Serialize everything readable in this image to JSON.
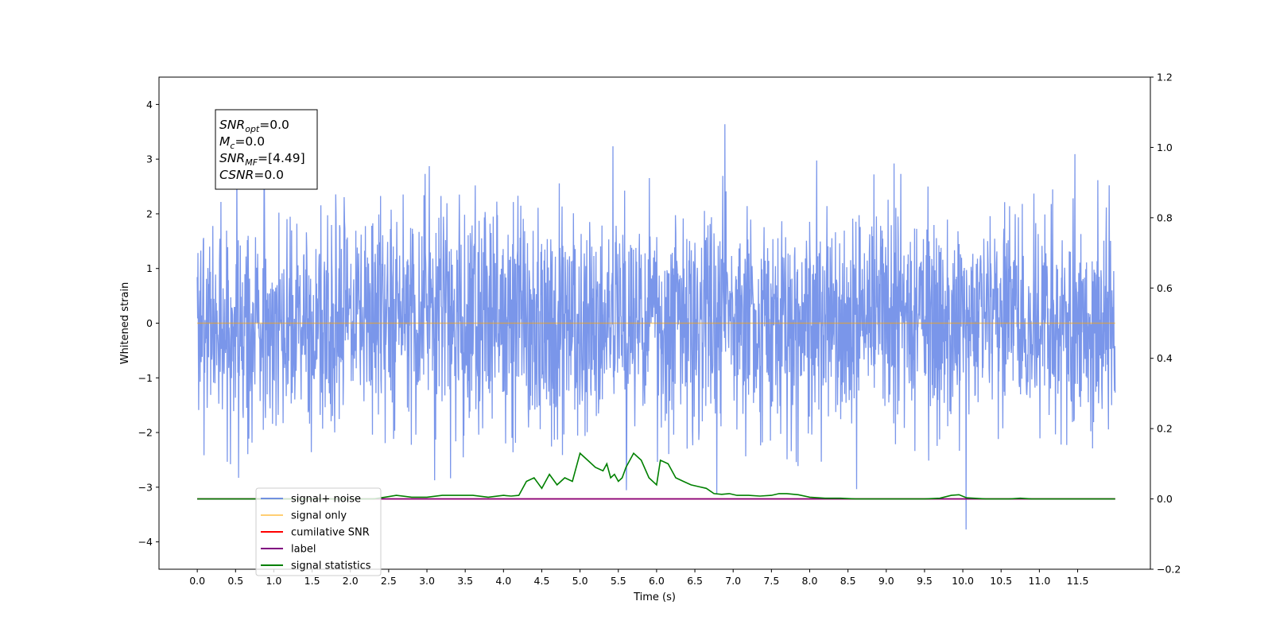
{
  "chart_data": {
    "type": "line",
    "xlabel": "Time (s)",
    "ylabel": "Whitened strain",
    "xlim": [
      -0.5,
      12.45
    ],
    "ylim": [
      -4.5,
      4.5
    ],
    "y2lim": [
      -0.2,
      1.2
    ],
    "grid": false,
    "x_ticks": [
      0.0,
      0.5,
      1.0,
      1.5,
      2.0,
      2.5,
      3.0,
      3.5,
      4.0,
      4.5,
      5.0,
      5.5,
      6.0,
      6.5,
      7.0,
      7.5,
      8.0,
      8.5,
      9.0,
      9.5,
      10.0,
      10.5,
      11.0,
      11.5
    ],
    "x_tick_labels": [
      "0.0",
      "0.5",
      "1.0",
      "1.5",
      "2.0",
      "2.5",
      "3.0",
      "3.5",
      "4.0",
      "4.5",
      "5.0",
      "5.5",
      "6.0",
      "6.5",
      "7.0",
      "7.5",
      "8.0",
      "8.5",
      "9.0",
      "9.5",
      "10.0",
      "10.5",
      "11.0",
      "11.5"
    ],
    "y_ticks": [
      -4,
      -3,
      -2,
      -1,
      0,
      1,
      2,
      3,
      4
    ],
    "y_tick_labels": [
      "−4",
      "−3",
      "−2",
      "−1",
      "0",
      "1",
      "2",
      "3",
      "4"
    ],
    "y2_ticks": [
      -0.2,
      0.0,
      0.2,
      0.4,
      0.6,
      0.8,
      1.0,
      1.2
    ],
    "y2_tick_labels": [
      "−0.2",
      "0.0",
      "0.2",
      "0.4",
      "0.6",
      "0.8",
      "1.0",
      "1.2"
    ],
    "legend_position": "lower-left",
    "annotation": {
      "lines": [
        {
          "sym": "SNR",
          "sub": "opt",
          "val": "=0.0"
        },
        {
          "sym": "M",
          "sub": "c",
          "val": "=0.0"
        },
        {
          "sym": "SNR",
          "sub": "MF",
          "val": "=[4.49]"
        },
        {
          "sym": "CSNR",
          "sub": "",
          "val": "=0.0"
        }
      ]
    },
    "series": [
      {
        "name": "signal+ noise",
        "color": "#4169e1",
        "axis": "left",
        "kind": "noise",
        "x_range": [
          0.0,
          11.99
        ],
        "std": 1.0,
        "seed": 7
      },
      {
        "name": "signal only",
        "color": "#ffa500",
        "axis": "left",
        "x": [
          0.0,
          11.99
        ],
        "y": [
          0.0,
          0.0
        ]
      },
      {
        "name": "cumilative SNR",
        "color": "#ff0000",
        "axis": "right",
        "x": [
          0.0,
          11.99
        ],
        "y": [
          0.0,
          0.0
        ]
      },
      {
        "name": "label",
        "color": "#800080",
        "axis": "right",
        "x": [
          0.0,
          11.99
        ],
        "y": [
          0.0,
          0.0
        ]
      },
      {
        "name": "signal statistics",
        "color": "#008000",
        "axis": "right",
        "x": [
          0.0,
          0.5,
          1.0,
          1.5,
          2.0,
          2.3,
          2.45,
          2.6,
          2.8,
          3.0,
          3.2,
          3.4,
          3.6,
          3.8,
          4.0,
          4.1,
          4.2,
          4.3,
          4.4,
          4.5,
          4.6,
          4.7,
          4.8,
          4.9,
          5.0,
          5.05,
          5.1,
          5.2,
          5.3,
          5.35,
          5.4,
          5.45,
          5.5,
          5.55,
          5.6,
          5.7,
          5.8,
          5.9,
          6.0,
          6.05,
          6.15,
          6.25,
          6.35,
          6.45,
          6.55,
          6.65,
          6.75,
          6.85,
          6.95,
          7.05,
          7.2,
          7.35,
          7.5,
          7.6,
          7.7,
          7.85,
          8.0,
          8.2,
          8.4,
          8.6,
          9.0,
          9.5,
          9.7,
          9.85,
          9.95,
          10.05,
          10.3,
          10.6,
          10.75,
          10.9,
          11.2,
          11.99
        ],
        "y": [
          0.0,
          0.0,
          0.0,
          0.0,
          0.0,
          0.0,
          0.005,
          0.01,
          0.005,
          0.005,
          0.01,
          0.01,
          0.01,
          0.005,
          0.01,
          0.008,
          0.01,
          0.05,
          0.06,
          0.03,
          0.07,
          0.04,
          0.06,
          0.05,
          0.13,
          0.12,
          0.11,
          0.09,
          0.08,
          0.1,
          0.06,
          0.07,
          0.05,
          0.06,
          0.09,
          0.13,
          0.11,
          0.06,
          0.04,
          0.11,
          0.1,
          0.06,
          0.05,
          0.04,
          0.035,
          0.03,
          0.015,
          0.013,
          0.015,
          0.01,
          0.01,
          0.008,
          0.01,
          0.015,
          0.015,
          0.012,
          0.005,
          0.002,
          0.002,
          0.0,
          0.0,
          0.0,
          0.002,
          0.01,
          0.012,
          0.003,
          0.0,
          0.0,
          0.002,
          0.0,
          0.0,
          0.0
        ]
      }
    ]
  }
}
